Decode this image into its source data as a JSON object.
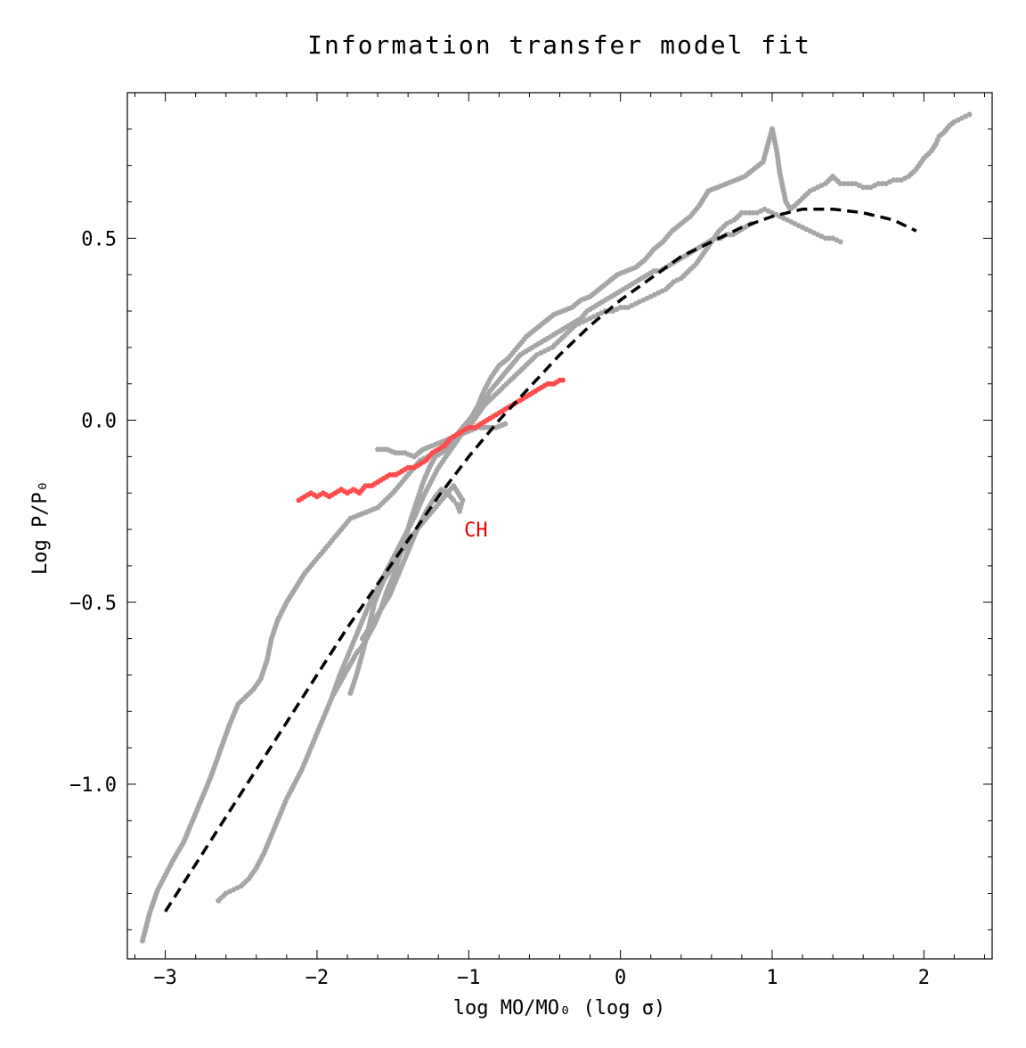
{
  "chart_data": {
    "type": "scatter",
    "title": "Information transfer model fit",
    "xlabel": "log MO/MO₀ (log σ)",
    "ylabel": "Log P/P₀",
    "xlim": [
      -3.25,
      2.45
    ],
    "ylim": [
      -1.48,
      0.9
    ],
    "x_ticks": [
      -3,
      -2,
      -1,
      0,
      1,
      2
    ],
    "x_tick_labels": [
      "−3",
      "−2",
      "−1",
      "0",
      "1",
      "2"
    ],
    "y_ticks": [
      -1.0,
      -0.5,
      0.0,
      0.5
    ],
    "y_tick_labels": [
      "−1.0",
      "−0.5",
      "0.0",
      "0.5"
    ],
    "grid": false,
    "annotations": [
      {
        "text": "CH",
        "x": -1.03,
        "y": -0.3,
        "color": "#ee0000"
      }
    ],
    "series": [
      {
        "color": "#a6a6a6",
        "style": "points",
        "x": [
          -3.15,
          -3.1,
          -3.05,
          -3.0,
          -2.95,
          -2.88,
          -2.82,
          -2.76,
          -2.7,
          -2.64,
          -2.58,
          -2.52,
          -2.47,
          -2.42,
          -2.37,
          -2.33,
          -2.3,
          -2.26,
          -2.2,
          -2.14,
          -2.08,
          -2.02,
          -1.96,
          -1.9,
          -1.84,
          -1.78,
          -1.72,
          -1.66,
          -1.6,
          -1.55,
          -1.5,
          -1.44,
          -1.38,
          -1.32,
          -1.27,
          -1.22,
          -1.18,
          -1.14,
          -1.1,
          -1.06,
          -1.02,
          -0.98,
          -0.94,
          -0.9,
          -0.85,
          -0.8,
          -0.74,
          -0.68,
          -0.62,
          -0.56,
          -0.5,
          -0.44,
          -0.38,
          -0.32,
          -0.26,
          -0.2,
          -0.14,
          -0.08,
          -0.02,
          0.04,
          0.1,
          0.16,
          0.22,
          0.28,
          0.34,
          0.4,
          0.46,
          0.52,
          0.58,
          0.64,
          0.7,
          0.76,
          0.82,
          0.88,
          0.94,
          1.0
        ],
        "y": [
          -1.43,
          -1.35,
          -1.29,
          -1.25,
          -1.21,
          -1.16,
          -1.1,
          -1.04,
          -0.98,
          -0.91,
          -0.84,
          -0.78,
          -0.76,
          -0.74,
          -0.71,
          -0.66,
          -0.6,
          -0.55,
          -0.5,
          -0.46,
          -0.42,
          -0.39,
          -0.36,
          -0.33,
          -0.3,
          -0.27,
          -0.26,
          -0.25,
          -0.24,
          -0.22,
          -0.2,
          -0.17,
          -0.14,
          -0.11,
          -0.1,
          -0.09,
          -0.08,
          -0.06,
          -0.05,
          -0.03,
          -0.01,
          0.01,
          0.04,
          0.08,
          0.12,
          0.15,
          0.17,
          0.2,
          0.23,
          0.25,
          0.27,
          0.29,
          0.3,
          0.31,
          0.33,
          0.34,
          0.36,
          0.38,
          0.4,
          0.41,
          0.42,
          0.44,
          0.47,
          0.49,
          0.52,
          0.54,
          0.56,
          0.59,
          0.63,
          0.64,
          0.65,
          0.66,
          0.67,
          0.69,
          0.71,
          0.8
        ]
      },
      {
        "color": "#a6a6a6",
        "style": "points",
        "x": [
          -2.65,
          -2.6,
          -2.55,
          -2.5,
          -2.45,
          -2.4,
          -2.35,
          -2.3,
          -2.25,
          -2.2,
          -2.15,
          -2.1,
          -2.05,
          -2.0,
          -1.95,
          -1.9,
          -1.85,
          -1.8,
          -1.75,
          -1.7,
          -1.65,
          -1.6,
          -1.55,
          -1.5,
          -1.45,
          -1.4,
          -1.35,
          -1.3,
          -1.25,
          -1.2,
          -1.15,
          -1.1,
          -1.05,
          -1.0,
          -0.95,
          -0.9,
          -0.85,
          -0.8,
          -0.75,
          -0.7,
          -0.65,
          -0.6,
          -0.55,
          -0.5,
          -0.45,
          -0.4,
          -0.35,
          -0.3,
          -0.25,
          -0.2,
          -0.15,
          -0.1,
          -0.05,
          0.0,
          0.05,
          0.1,
          0.15,
          0.2,
          0.25,
          0.3,
          0.35,
          0.4,
          0.45,
          0.5,
          0.55,
          0.6,
          0.65,
          0.7,
          0.75,
          0.8,
          0.85,
          0.9,
          0.95,
          1.0,
          1.05,
          1.1,
          1.15,
          1.2,
          1.25,
          1.3,
          1.35,
          1.4,
          1.45
        ],
        "y": [
          -1.32,
          -1.3,
          -1.29,
          -1.28,
          -1.26,
          -1.23,
          -1.19,
          -1.14,
          -1.09,
          -1.04,
          -1.0,
          -0.96,
          -0.91,
          -0.86,
          -0.81,
          -0.76,
          -0.7,
          -0.65,
          -0.6,
          -0.55,
          -0.5,
          -0.46,
          -0.42,
          -0.38,
          -0.34,
          -0.3,
          -0.26,
          -0.21,
          -0.17,
          -0.13,
          -0.1,
          -0.07,
          -0.04,
          -0.02,
          0.01,
          0.04,
          0.06,
          0.08,
          0.1,
          0.12,
          0.14,
          0.16,
          0.18,
          0.19,
          0.2,
          0.22,
          0.24,
          0.26,
          0.27,
          0.28,
          0.29,
          0.3,
          0.3,
          0.31,
          0.31,
          0.32,
          0.33,
          0.34,
          0.35,
          0.36,
          0.38,
          0.39,
          0.41,
          0.43,
          0.46,
          0.49,
          0.52,
          0.54,
          0.55,
          0.57,
          0.57,
          0.57,
          0.58,
          0.57,
          0.56,
          0.55,
          0.54,
          0.53,
          0.52,
          0.51,
          0.5,
          0.5,
          0.49
        ]
      },
      {
        "color": "#a6a6a6",
        "style": "points",
        "x": [
          -1.9,
          -1.86,
          -1.82,
          -1.78,
          -1.74,
          -1.7,
          -1.66,
          -1.62,
          -1.58,
          -1.54,
          -1.5,
          -1.46,
          -1.42,
          -1.38,
          -1.34,
          -1.3,
          -1.26,
          -1.22,
          -1.18,
          -1.14,
          -1.1,
          -1.06,
          -1.02,
          -0.98,
          -0.94,
          -0.9,
          -0.86,
          -0.82,
          -0.78,
          -0.74,
          -0.7,
          -0.66,
          -0.62,
          -0.58,
          -0.54,
          -0.5,
          -0.46,
          -0.42,
          -0.38,
          -0.34,
          -0.3,
          -0.26,
          -0.22,
          -0.18,
          -0.14,
          -0.1,
          -0.06,
          -0.02,
          0.02,
          0.06,
          0.1,
          0.14,
          0.18,
          0.22,
          0.26,
          0.3,
          0.34,
          0.38,
          0.42,
          0.46,
          0.5,
          0.54,
          0.58,
          0.62,
          0.66,
          0.7,
          0.74,
          0.78,
          0.82,
          0.86
        ],
        "y": [
          -0.76,
          -0.73,
          -0.7,
          -0.67,
          -0.64,
          -0.62,
          -0.59,
          -0.56,
          -0.52,
          -0.47,
          -0.43,
          -0.38,
          -0.33,
          -0.27,
          -0.22,
          -0.17,
          -0.13,
          -0.1,
          -0.09,
          -0.08,
          -0.06,
          -0.04,
          -0.02,
          0.0,
          0.02,
          0.05,
          0.08,
          0.1,
          0.12,
          0.14,
          0.16,
          0.18,
          0.19,
          0.2,
          0.21,
          0.22,
          0.23,
          0.24,
          0.25,
          0.26,
          0.27,
          0.28,
          0.3,
          0.31,
          0.32,
          0.33,
          0.34,
          0.35,
          0.36,
          0.37,
          0.38,
          0.39,
          0.4,
          0.41,
          0.41,
          0.42,
          0.43,
          0.44,
          0.45,
          0.46,
          0.47,
          0.48,
          0.49,
          0.5,
          0.5,
          0.51,
          0.51,
          0.52,
          0.53,
          0.54
        ]
      },
      {
        "color": "#a6a6a6",
        "style": "points",
        "x": [
          -1.7,
          -1.64,
          -1.58,
          -1.52,
          -1.46,
          -1.4,
          -1.34,
          -1.28,
          -1.22,
          -1.18,
          -1.14,
          -1.1,
          -1.08,
          -1.06,
          -1.04,
          -1.1,
          -1.14,
          -1.2,
          -1.26,
          -1.32,
          -1.38,
          -1.44,
          -1.5,
          -1.56,
          -1.62,
          -1.66,
          -1.7,
          -1.74,
          -1.78
        ],
        "y": [
          -0.6,
          -0.56,
          -0.52,
          -0.48,
          -0.42,
          -0.36,
          -0.3,
          -0.25,
          -0.21,
          -0.19,
          -0.2,
          -0.22,
          -0.23,
          -0.25,
          -0.22,
          -0.18,
          -0.2,
          -0.23,
          -0.26,
          -0.29,
          -0.32,
          -0.36,
          -0.4,
          -0.44,
          -0.5,
          -0.57,
          -0.64,
          -0.7,
          -0.75
        ]
      },
      {
        "color": "#a6a6a6",
        "style": "points",
        "x": [
          -1.6,
          -1.54,
          -1.48,
          -1.42,
          -1.36,
          -1.3,
          -1.24,
          -1.18,
          -1.12,
          -1.06,
          -1.0,
          -0.94,
          -0.88,
          -0.82,
          -0.76
        ],
        "y": [
          -0.08,
          -0.08,
          -0.09,
          -0.09,
          -0.1,
          -0.08,
          -0.07,
          -0.06,
          -0.05,
          -0.04,
          -0.03,
          -0.02,
          -0.02,
          -0.02,
          -0.01
        ]
      },
      {
        "color": "#a6a6a6",
        "style": "points",
        "x": [
          1.0,
          1.03,
          1.05,
          1.07,
          1.09,
          1.12,
          1.15,
          1.2,
          1.25,
          1.3,
          1.35,
          1.4,
          1.45,
          1.5,
          1.55,
          1.6,
          1.65,
          1.7,
          1.75,
          1.8,
          1.85,
          1.9,
          1.95,
          2.0,
          2.05,
          2.08,
          2.1,
          2.13,
          2.17,
          2.2,
          2.25,
          2.3
        ],
        "y": [
          0.8,
          0.74,
          0.68,
          0.64,
          0.6,
          0.58,
          0.59,
          0.61,
          0.63,
          0.64,
          0.65,
          0.67,
          0.65,
          0.65,
          0.65,
          0.64,
          0.64,
          0.65,
          0.65,
          0.66,
          0.66,
          0.67,
          0.69,
          0.72,
          0.74,
          0.76,
          0.78,
          0.79,
          0.81,
          0.82,
          0.83,
          0.84
        ]
      },
      {
        "color": "#ff4d4d",
        "style": "points",
        "x": [
          -2.12,
          -2.08,
          -2.04,
          -2.0,
          -1.96,
          -1.92,
          -1.88,
          -1.84,
          -1.8,
          -1.76,
          -1.72,
          -1.68,
          -1.64,
          -1.6,
          -1.56,
          -1.52,
          -1.48,
          -1.44,
          -1.4,
          -1.36,
          -1.32,
          -1.28,
          -1.24,
          -1.2,
          -1.16,
          -1.12,
          -1.08,
          -1.04,
          -1.0,
          -0.96,
          -0.92,
          -0.88,
          -0.84,
          -0.8,
          -0.76,
          -0.72,
          -0.68,
          -0.64,
          -0.6,
          -0.56,
          -0.52,
          -0.48,
          -0.44,
          -0.4,
          -0.38
        ],
        "y": [
          -0.22,
          -0.21,
          -0.2,
          -0.21,
          -0.2,
          -0.21,
          -0.2,
          -0.19,
          -0.2,
          -0.19,
          -0.2,
          -0.18,
          -0.18,
          -0.17,
          -0.16,
          -0.15,
          -0.15,
          -0.14,
          -0.13,
          -0.13,
          -0.12,
          -0.11,
          -0.09,
          -0.08,
          -0.07,
          -0.05,
          -0.04,
          -0.03,
          -0.02,
          -0.02,
          -0.01,
          0.0,
          0.01,
          0.02,
          0.03,
          0.04,
          0.05,
          0.06,
          0.07,
          0.08,
          0.09,
          0.1,
          0.1,
          0.11,
          0.11
        ]
      },
      {
        "color": "#000000",
        "style": "dashed-line",
        "x": [
          -3.0,
          -2.8,
          -2.6,
          -2.4,
          -2.2,
          -2.0,
          -1.8,
          -1.6,
          -1.4,
          -1.2,
          -1.0,
          -0.8,
          -0.6,
          -0.4,
          -0.2,
          0.0,
          0.2,
          0.4,
          0.6,
          0.8,
          1.0,
          1.2,
          1.4,
          1.6,
          1.8,
          1.95
        ],
        "y": [
          -1.35,
          -1.22,
          -1.09,
          -0.96,
          -0.83,
          -0.7,
          -0.57,
          -0.45,
          -0.33,
          -0.21,
          -0.1,
          0.0,
          0.09,
          0.18,
          0.26,
          0.33,
          0.39,
          0.45,
          0.49,
          0.53,
          0.56,
          0.58,
          0.58,
          0.57,
          0.55,
          0.52
        ]
      }
    ]
  }
}
